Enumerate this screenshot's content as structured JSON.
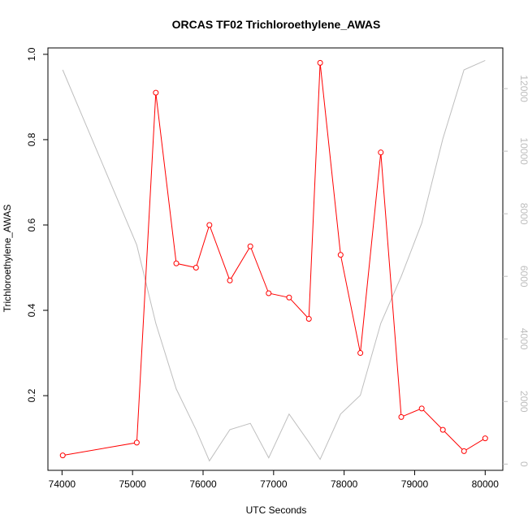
{
  "chart_data": {
    "type": "line",
    "title": "ORCAS TF02 Trichloroethylene_AWAS",
    "xlabel": "UTC Seconds",
    "ylabel": "Trichloroethylene_AWAS",
    "xlim": [
      73800,
      80250
    ],
    "ylim": [
      0.025,
      1.015
    ],
    "y2lim": [
      -200,
      13300
    ],
    "x_ticks": [
      74000,
      75000,
      76000,
      77000,
      78000,
      79000,
      80000
    ],
    "y_ticks": [
      0.2,
      0.4,
      0.6,
      0.8,
      1.0
    ],
    "y_tick_labels": [
      "0.2",
      "0.4",
      "0.6",
      "0.8",
      "1.0"
    ],
    "y2_ticks": [
      0,
      2000,
      4000,
      6000,
      8000,
      10000,
      12000
    ],
    "grid": false,
    "series": [
      {
        "axis": "left",
        "color": "#ff0000",
        "marker": "open-circle",
        "x": [
          74010,
          75060,
          75330,
          75620,
          75900,
          76090,
          76380,
          76670,
          76930,
          77220,
          77500,
          77660,
          77950,
          78230,
          78520,
          78810,
          79100,
          79400,
          79700,
          80000
        ],
        "values": [
          0.06,
          0.09,
          0.91,
          0.51,
          0.5,
          0.6,
          0.47,
          0.55,
          0.44,
          0.43,
          0.38,
          0.98,
          0.53,
          0.3,
          0.77,
          0.15,
          0.17,
          0.12,
          0.07,
          0.1
        ]
      },
      {
        "axis": "right",
        "color": "#bebebe",
        "marker": "none",
        "x": [
          74010,
          75060,
          75330,
          75620,
          75900,
          76090,
          76380,
          76670,
          76930,
          77220,
          77500,
          77660,
          77950,
          78230,
          78520,
          78810,
          79100,
          79400,
          79700,
          80000
        ],
        "values": [
          12600,
          7000,
          4500,
          2400,
          1100,
          100,
          1100,
          1300,
          200,
          1600,
          700,
          150,
          1600,
          2200,
          4500,
          6000,
          7700,
          10400,
          12600,
          12900
        ]
      }
    ]
  }
}
